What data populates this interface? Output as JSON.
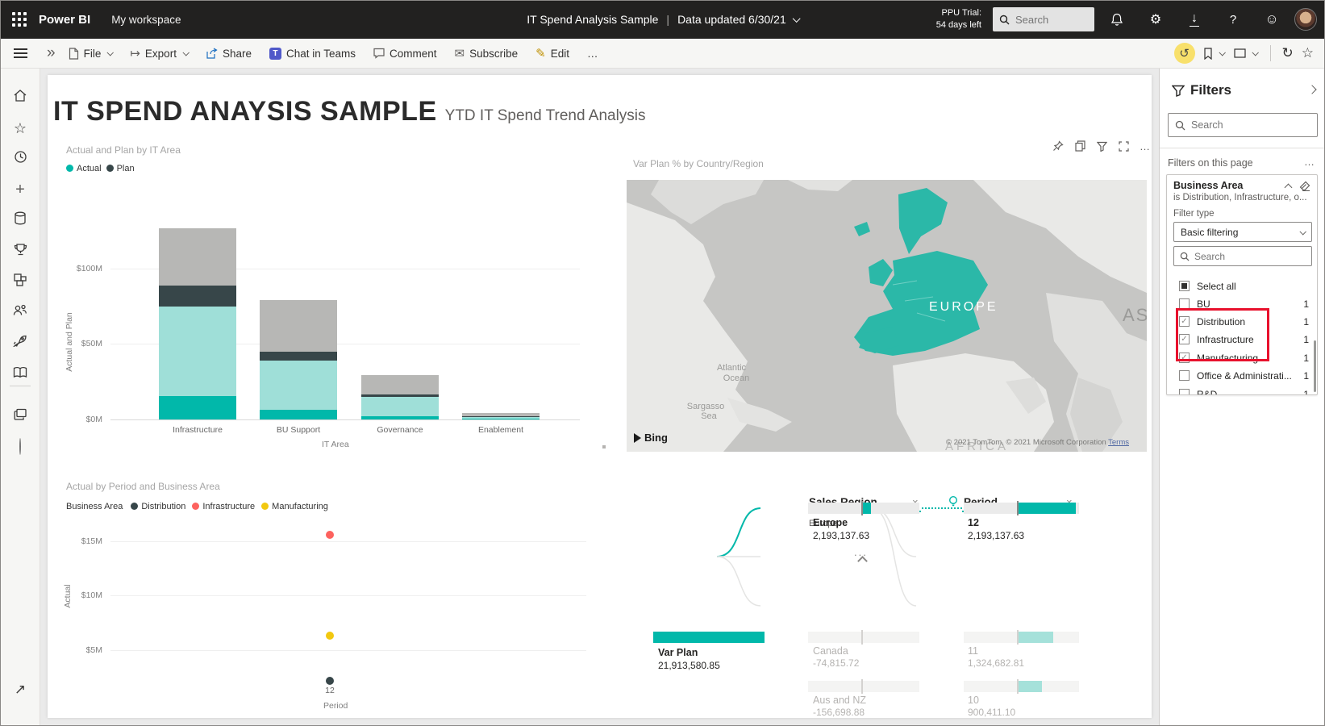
{
  "colors": {
    "accent_teal": "#01B8AA",
    "teal_dim": "#9FDFD8",
    "plan_dark": "#374649",
    "plan_dim": "#B7B7B5",
    "red": "#FD625E",
    "yellow": "#F2C80F",
    "topbar_bg": "#222120",
    "annotation_red": "#E8112D",
    "map_highlight": "#2BB8A8"
  },
  "top_bar": {
    "brand": "Power BI",
    "workspace": "My workspace",
    "title": "IT Spend Analysis Sample",
    "separator": "|",
    "updated": "Data updated 6/30/21",
    "trial_line1": "PPU Trial:",
    "trial_line2": "54 days left",
    "search_placeholder": "Search",
    "icons": [
      "search-icon",
      "bell-icon",
      "gear-icon",
      "download-icon",
      "help-icon",
      "feedback-icon",
      "avatar"
    ]
  },
  "toolbar": {
    "file": "File",
    "export": "Export",
    "share": "Share",
    "teams": "Chat in Teams",
    "comment": "Comment",
    "subscribe": "Subscribe",
    "edit": "Edit",
    "more": "…",
    "right_icons": [
      "undo-icon",
      "bookmark-icon",
      "view-icon",
      "refresh-icon",
      "favorite-icon"
    ]
  },
  "left_rail": {
    "items": [
      {
        "name": "home"
      },
      {
        "name": "favorites"
      },
      {
        "name": "recent"
      },
      {
        "name": "create"
      },
      {
        "name": "datasets"
      },
      {
        "name": "goals"
      },
      {
        "name": "apps"
      },
      {
        "name": "shared-with-me"
      },
      {
        "name": "deployment-pipelines"
      },
      {
        "name": "learn"
      },
      {
        "name": "workspaces"
      },
      {
        "name": "my-workspace-avatar"
      },
      {
        "name": "expand-navigation"
      }
    ]
  },
  "report": {
    "title": "IT SPEND ANAYSIS SAMPLE",
    "subtitle": "YTD IT Spend Trend Analysis"
  },
  "visuals": {
    "bar": {
      "title": "Actual and Plan by IT Area",
      "legend": [
        {
          "label": "Actual",
          "color": "#01B8AA"
        },
        {
          "label": "Plan",
          "color": "#374649"
        }
      ],
      "y_title": "Actual and Plan",
      "x_title": "IT Area",
      "y_ticks": [
        "$0M",
        "$50M",
        "$100M"
      ]
    },
    "scatter": {
      "title": "Actual by Period and Business Area",
      "legend_title": "Business Area",
      "legend": [
        {
          "label": "Distribution",
          "color": "#374649"
        },
        {
          "label": "Infrastructure",
          "color": "#FD625E"
        },
        {
          "label": "Manufacturing",
          "color": "#F2C80F"
        }
      ],
      "y_title": "Actual",
      "x_title": "Period",
      "x_tick": "12",
      "y_ticks": [
        "$5M",
        "$10M",
        "$15M"
      ]
    },
    "map": {
      "title": "Var Plan % by Country/Region",
      "header_icons": [
        "pin-icon",
        "copy-icon",
        "filter-icon",
        "focus-mode-icon",
        "more-options-icon"
      ],
      "labels": {
        "europe": "EUROPE",
        "atlantic1": "Atlantic",
        "atlantic2": "Ocean",
        "sargasso1": "Sargasso",
        "sargasso2": "Sea",
        "asia": "AS",
        "africa": "AFRICA"
      },
      "bing_label": "Bing",
      "copyright": "© 2021 TomTom, © 2021 Microsoft Corporation",
      "terms": "Terms"
    },
    "tree": {
      "fields": [
        {
          "label": "Sales Region"
        },
        {
          "label": "Period",
          "bulb": true
        }
      ],
      "breadcrumb": "Europe",
      "root": {
        "label": "Var Plan",
        "value": "21,913,580.85"
      },
      "more": "...",
      "level1": [
        {
          "label": "Europe",
          "value": "2,193,137.63",
          "selected": true
        },
        {
          "label": "Canada",
          "value": "-74,815.72",
          "selected": false
        },
        {
          "label": "Aus and NZ",
          "value": "-156,698.88",
          "selected": false
        }
      ],
      "level2": [
        {
          "label": "12",
          "value": "2,193,137.63",
          "selected": true
        },
        {
          "label": "11",
          "value": "1,324,682.81",
          "selected": false
        },
        {
          "label": "10",
          "value": "900,411.10",
          "selected": false
        }
      ]
    }
  },
  "filters_panel": {
    "title": "Filters",
    "search_placeholder": "Search",
    "section_title": "Filters on this page",
    "more": "…",
    "card": {
      "field": "Business Area",
      "summary": "is Distribution, Infrastructure, o...",
      "filter_type_label": "Filter type",
      "filter_type_value": "Basic filtering",
      "search_placeholder": "Search",
      "items": [
        {
          "label": "Select all",
          "state": "indeterminate",
          "count": ""
        },
        {
          "label": "BU",
          "state": "unchecked",
          "count": "1"
        },
        {
          "label": "Distribution",
          "state": "checked",
          "count": "1",
          "highlighted": true
        },
        {
          "label": "Infrastructure",
          "state": "checked",
          "count": "1",
          "highlighted": true
        },
        {
          "label": "Manufacturing",
          "state": "checked",
          "count": "1",
          "highlighted": true
        },
        {
          "label": "Office & Administrati...",
          "state": "unchecked",
          "count": "1"
        },
        {
          "label": "R&D",
          "state": "unchecked",
          "count": "1"
        }
      ]
    }
  },
  "chart_data": [
    {
      "type": "bar",
      "title": "Actual and Plan by IT Area",
      "xlabel": "IT Area",
      "ylabel": "Actual and Plan",
      "ylim_m": [
        0,
        130
      ],
      "y_gridlines_m": [
        0,
        50,
        100
      ],
      "categories": [
        "Infrastructure",
        "BU Support",
        "Governance",
        "Enablement"
      ],
      "stacked": true,
      "series": [
        {
          "name": "Actual (highlighted)",
          "color": "#01B8AA",
          "values_m": [
            15.4,
            6.4,
            2.0,
            0.4
          ]
        },
        {
          "name": "Actual (dimmed)",
          "color": "#9FDFD8",
          "values_m": [
            59.6,
            32.5,
            13.0,
            1.6
          ]
        },
        {
          "name": "Plan (highlighted)",
          "color": "#374649",
          "values_m": [
            14.0,
            6.0,
            1.7,
            0.3
          ]
        },
        {
          "name": "Plan (dimmed)",
          "color": "#B7B7B5",
          "values_m": [
            37.5,
            34.0,
            12.6,
            2.0
          ]
        }
      ],
      "totals_m": [
        126.5,
        78.9,
        29.3,
        4.3
      ]
    },
    {
      "type": "scatter",
      "title": "Actual by Period and Business Area",
      "xlabel": "Period",
      "ylabel": "Actual",
      "ylim_m": [
        0,
        17
      ],
      "y_gridlines_m": [
        5,
        10,
        15
      ],
      "points": [
        {
          "series": "Infrastructure",
          "x": 12,
          "y_m": 15.6,
          "color": "#FD625E"
        },
        {
          "series": "Manufacturing",
          "x": 12,
          "y_m": 6.3,
          "color": "#F2C80F"
        },
        {
          "series": "Distribution",
          "x": 12,
          "y_m": 2.2,
          "color": "#374649"
        }
      ]
    },
    {
      "type": "table",
      "title": "Var Plan decomposition (Sales Region > Period)",
      "rows": [
        {
          "node": "Var Plan",
          "value": 21913580.85
        },
        {
          "node": "Europe",
          "value": 2193137.63
        },
        {
          "node": "Canada",
          "value": -74815.72
        },
        {
          "node": "Aus and NZ",
          "value": -156698.88
        },
        {
          "node": "Period 12",
          "value": 2193137.63
        },
        {
          "node": "Period 11",
          "value": 1324682.81
        },
        {
          "node": "Period 10",
          "value": 900411.1
        }
      ]
    }
  ]
}
